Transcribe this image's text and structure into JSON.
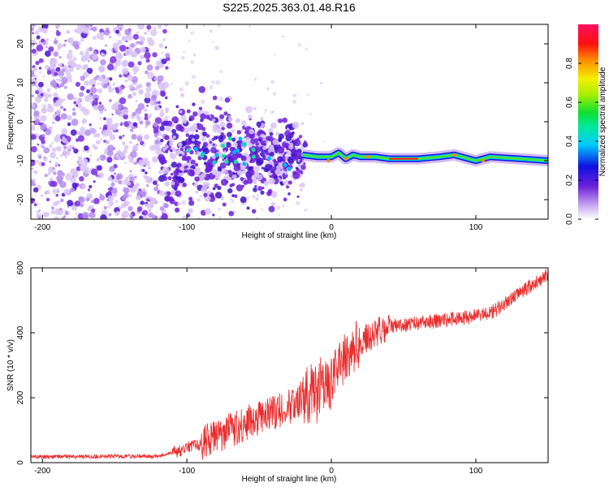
{
  "title": "S225.2025.363.01.48.R16",
  "chart_data": [
    {
      "type": "heatmap",
      "xlabel": "Height of straight line (km)",
      "ylabel": "Frequency (Hz)",
      "xlim": [
        -208,
        150
      ],
      "ylim": [
        -25,
        25
      ],
      "xticks": [
        "-200",
        "-100",
        "0",
        "100"
      ],
      "yticks": [
        "-20",
        "-10",
        "0",
        "10",
        "20"
      ],
      "colorbar": {
        "label": "Normalized spectral amplitude",
        "range": [
          0,
          1
        ],
        "ticks": [
          "0.0",
          "0.2",
          "0.4",
          "0.6",
          "0.8"
        ]
      },
      "carrier_trace": [
        [
          -20,
          -8.5
        ],
        [
          -10,
          -9
        ],
        [
          0,
          -9
        ],
        [
          5,
          -8
        ],
        [
          10,
          -9.5
        ],
        [
          15,
          -8.5
        ],
        [
          20,
          -9
        ],
        [
          30,
          -9
        ],
        [
          40,
          -9.5
        ],
        [
          60,
          -9.5
        ],
        [
          75,
          -9
        ],
        [
          85,
          -8.5
        ],
        [
          100,
          -10
        ],
        [
          110,
          -9
        ],
        [
          150,
          -10
        ]
      ],
      "noise_cloud": {
        "x_range": [
          -208,
          -15
        ],
        "center_freq": -9,
        "spread": 34
      }
    },
    {
      "type": "line",
      "xlabel": "Height of straight line (km)",
      "ylabel": "SNR (10 * v/v)",
      "xlim": [
        -208,
        150
      ],
      "ylim": [
        0,
        600
      ],
      "xticks": [
        "-200",
        "-100",
        "0",
        "100"
      ],
      "yticks": [
        "0",
        "200",
        "400",
        "600"
      ],
      "color": "#e82b2b",
      "profile": [
        [
          -208,
          18
        ],
        [
          -120,
          20
        ],
        [
          -110,
          30
        ],
        [
          -90,
          60
        ],
        [
          -70,
          100
        ],
        [
          -50,
          140
        ],
        [
          -30,
          170
        ],
        [
          -20,
          200
        ],
        [
          -10,
          220
        ],
        [
          0,
          260
        ],
        [
          10,
          330
        ],
        [
          20,
          370
        ],
        [
          30,
          400
        ],
        [
          40,
          420
        ],
        [
          60,
          430
        ],
        [
          80,
          440
        ],
        [
          100,
          450
        ],
        [
          110,
          460
        ],
        [
          120,
          490
        ],
        [
          130,
          520
        ],
        [
          140,
          550
        ],
        [
          150,
          580
        ]
      ]
    }
  ]
}
